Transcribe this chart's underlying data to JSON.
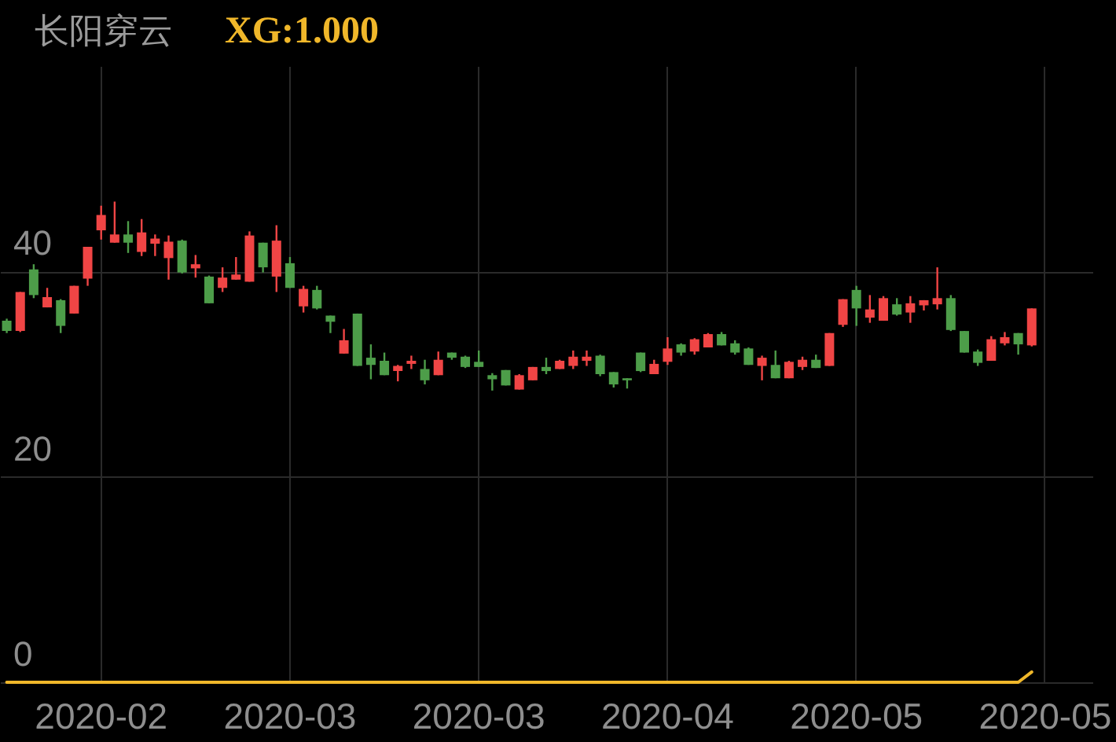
{
  "chart_data": {
    "type": "candlestick",
    "title": "长阳穿云",
    "categories": [
      null,
      null,
      null,
      null,
      null,
      null,
      null,
      "2020-02",
      null,
      null,
      null,
      null,
      null,
      null,
      null,
      null,
      null,
      null,
      null,
      null,
      null,
      "2020-03",
      null,
      null,
      null,
      null,
      null,
      null,
      null,
      null,
      null,
      null,
      null,
      null,
      null,
      "2020-03",
      null,
      null,
      null,
      null,
      null,
      null,
      null,
      null,
      null,
      null,
      null,
      null,
      null,
      "2020-04",
      null,
      null,
      null,
      null,
      null,
      null,
      null,
      null,
      null,
      null,
      null,
      null,
      null,
      "2020-05",
      null,
      null,
      null,
      null,
      null,
      null,
      null,
      null,
      null,
      null,
      null,
      null,
      null,
      "2020-05",
      null,
      null,
      null
    ],
    "ohlc": [
      [
        35.2,
        35.4,
        34.0,
        34.2
      ],
      [
        34.2,
        38.0,
        34.1,
        38.0
      ],
      [
        40.2,
        40.7,
        37.4,
        37.7
      ],
      [
        36.5,
        38.4,
        36.5,
        37.5
      ],
      [
        37.2,
        37.3,
        34.0,
        34.7
      ],
      [
        35.9,
        38.6,
        35.9,
        38.6
      ],
      [
        39.3,
        42.4,
        38.6,
        42.4
      ],
      [
        44.0,
        46.4,
        43.1,
        45.5
      ],
      [
        42.8,
        46.8,
        42.8,
        43.6
      ],
      [
        43.6,
        44.9,
        41.8,
        42.8
      ],
      [
        41.9,
        45.1,
        41.5,
        43.8
      ],
      [
        42.7,
        43.6,
        41.5,
        43.2
      ],
      [
        41.3,
        43.5,
        39.2,
        42.9
      ],
      [
        43.0,
        43.1,
        39.8,
        39.9
      ],
      [
        40.3,
        41.6,
        39.4,
        40.7
      ],
      [
        39.5,
        39.6,
        36.9,
        36.9
      ],
      [
        38.4,
        40.4,
        38.0,
        39.4
      ],
      [
        39.2,
        41.4,
        39.2,
        39.7
      ],
      [
        39.0,
        43.9,
        39.0,
        43.5
      ],
      [
        42.8,
        42.8,
        39.9,
        40.4
      ],
      [
        39.5,
        44.5,
        38.0,
        43.0
      ],
      [
        40.8,
        41.4,
        38.4,
        38.4
      ],
      [
        36.6,
        38.6,
        36.0,
        38.3
      ],
      [
        38.2,
        38.6,
        36.3,
        36.4
      ],
      [
        35.7,
        35.7,
        34.0,
        35.1
      ],
      [
        32.0,
        34.4,
        32.0,
        33.3
      ],
      [
        35.9,
        35.9,
        30.8,
        30.8
      ],
      [
        31.6,
        32.9,
        29.5,
        30.9
      ],
      [
        31.3,
        32.1,
        29.9,
        29.9
      ],
      [
        30.3,
        30.9,
        29.3,
        30.8
      ],
      [
        31.0,
        31.8,
        30.5,
        31.3
      ],
      [
        30.5,
        31.4,
        29.0,
        29.4
      ],
      [
        29.9,
        32.2,
        29.9,
        31.4
      ],
      [
        32.1,
        32.1,
        31.4,
        31.6
      ],
      [
        31.7,
        31.8,
        30.6,
        30.7
      ],
      [
        31.2,
        32.3,
        30.7,
        30.7
      ],
      [
        29.9,
        30.1,
        28.4,
        29.5
      ],
      [
        30.4,
        30.4,
        28.9,
        28.9
      ],
      [
        28.5,
        30.0,
        28.5,
        29.9
      ],
      [
        29.4,
        30.7,
        29.4,
        30.7
      ],
      [
        30.7,
        31.6,
        30.0,
        30.3
      ],
      [
        30.5,
        31.4,
        30.5,
        31.3
      ],
      [
        30.8,
        32.3,
        30.5,
        31.7
      ],
      [
        31.3,
        32.3,
        30.8,
        31.7
      ],
      [
        31.8,
        31.9,
        29.8,
        30.0
      ],
      [
        30.2,
        30.2,
        28.7,
        29.0
      ],
      [
        29.6,
        29.6,
        28.6,
        29.4
      ],
      [
        32.1,
        32.1,
        30.2,
        30.3
      ],
      [
        30.0,
        31.4,
        30.0,
        31.0
      ],
      [
        31.2,
        33.6,
        30.9,
        32.5
      ],
      [
        32.9,
        33.0,
        31.8,
        32.1
      ],
      [
        32.2,
        33.5,
        31.9,
        33.4
      ],
      [
        32.6,
        34.0,
        32.6,
        33.9
      ],
      [
        33.9,
        34.1,
        32.8,
        32.8
      ],
      [
        33.0,
        33.3,
        31.9,
        32.1
      ],
      [
        32.5,
        32.6,
        30.9,
        30.9
      ],
      [
        30.8,
        31.8,
        29.4,
        31.6
      ],
      [
        30.9,
        32.3,
        29.6,
        29.6
      ],
      [
        29.6,
        31.3,
        29.6,
        31.2
      ],
      [
        30.7,
        31.7,
        30.4,
        31.4
      ],
      [
        31.4,
        31.9,
        30.6,
        30.6
      ],
      [
        30.8,
        34.0,
        30.8,
        34.0
      ],
      [
        34.8,
        37.3,
        34.6,
        37.3
      ],
      [
        38.2,
        38.6,
        34.7,
        36.4
      ],
      [
        35.5,
        37.7,
        35.0,
        36.3
      ],
      [
        35.2,
        37.6,
        35.2,
        37.4
      ],
      [
        36.8,
        37.4,
        35.7,
        35.8
      ],
      [
        36.0,
        37.6,
        35.0,
        36.9
      ],
      [
        36.7,
        37.2,
        36.2,
        37.2
      ],
      [
        36.8,
        40.4,
        36.3,
        37.4
      ],
      [
        37.4,
        37.7,
        34.2,
        34.3
      ],
      [
        34.2,
        34.2,
        32.1,
        32.1
      ],
      [
        32.2,
        32.4,
        30.8,
        31.1
      ],
      [
        31.3,
        33.7,
        31.3,
        33.4
      ],
      [
        33.0,
        34.1,
        32.8,
        33.6
      ],
      [
        34.0,
        34.0,
        31.9,
        32.9
      ],
      [
        32.8,
        36.4,
        32.7,
        36.4
      ],
      null,
      null,
      null,
      null
    ],
    "colors": [
      "#4d9d49",
      "#f04545",
      "#4d9d49",
      "#f04545",
      "#4d9d49",
      "#f04545",
      "#f04545",
      "#f04545",
      "#f04545",
      "#4d9d49",
      "#f04545",
      "#f04545",
      "#f04545",
      "#4d9d49",
      "#f04545",
      "#4d9d49",
      "#f04545",
      "#f04545",
      "#f04545",
      "#4d9d49",
      "#f04545",
      "#4d9d49",
      "#f04545",
      "#4d9d49",
      "#4d9d49",
      "#f04545",
      "#4d9d49",
      "#4d9d49",
      "#4d9d49",
      "#f04545",
      "#f04545",
      "#4d9d49",
      "#f04545",
      "#4d9d49",
      "#4d9d49",
      "#4d9d49",
      "#4d9d49",
      "#4d9d49",
      "#f04545",
      "#f04545",
      "#4d9d49",
      "#f04545",
      "#f04545",
      "#f04545",
      "#4d9d49",
      "#4d9d49",
      "#4d9d49",
      "#4d9d49",
      "#f04545",
      "#f04545",
      "#4d9d49",
      "#f04545",
      "#f04545",
      "#4d9d49",
      "#4d9d49",
      "#4d9d49",
      "#f04545",
      "#4d9d49",
      "#f04545",
      "#f04545",
      "#4d9d49",
      "#f04545",
      "#f04545",
      "#4d9d49",
      "#f04545",
      "#f04545",
      "#4d9d49",
      "#f04545",
      "#f04545",
      "#f04545",
      "#4d9d49",
      "#4d9d49",
      "#4d9d49",
      "#f04545",
      "#f04545",
      "#4d9d49",
      "#f04545",
      null,
      null,
      null,
      null
    ],
    "series": [
      {
        "type": "line",
        "name": "XG:1.000",
        "color": "#f0b72a",
        "values": [
          0,
          0,
          0,
          0,
          0,
          0,
          0,
          0,
          0,
          0,
          0,
          0,
          0,
          0,
          0,
          0,
          0,
          0,
          0,
          0,
          0,
          0,
          0,
          0,
          0,
          0,
          0,
          0,
          0,
          0,
          0,
          0,
          0,
          0,
          0,
          0,
          0,
          0,
          0,
          0,
          0,
          0,
          0,
          0,
          0,
          0,
          0,
          0,
          0,
          0,
          0,
          0,
          0,
          0,
          0,
          0,
          0,
          0,
          0,
          0,
          0,
          0,
          0,
          0,
          0,
          0,
          0,
          0,
          0,
          0,
          0,
          0,
          0,
          0,
          0,
          0,
          1,
          null,
          null,
          null,
          null
        ]
      }
    ],
    "ylim": [
      0,
      60
    ],
    "yticks": [
      0,
      20,
      40
    ],
    "grid": true
  }
}
